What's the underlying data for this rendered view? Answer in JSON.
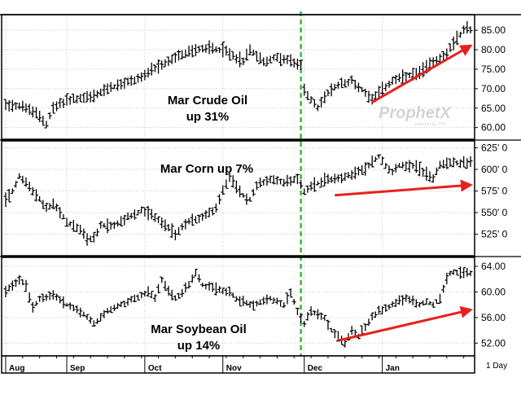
{
  "chart_data": [
    {
      "type": "ohlc",
      "series": [
        {
          "name": "Mar Crude Oil"
        }
      ],
      "annotation": [
        "Mar Crude Oil",
        "up 31%"
      ],
      "ylim": [
        57,
        89
      ],
      "yticks": [
        "85.00",
        "80.00",
        "75.00",
        "70.00",
        "65.00",
        "60.00"
      ],
      "ytick_values": [
        85,
        80,
        75,
        70,
        65,
        60
      ],
      "watermark": "ProphetX",
      "watermark_sub": "powered by DTN",
      "anchors": [
        [
          0,
          66
        ],
        [
          5,
          65.5
        ],
        [
          10,
          63
        ],
        [
          12,
          61
        ],
        [
          14,
          65
        ],
        [
          18,
          67
        ],
        [
          22,
          67.5
        ],
        [
          26,
          68
        ],
        [
          30,
          70
        ],
        [
          34,
          71
        ],
        [
          40,
          73
        ],
        [
          46,
          76
        ],
        [
          50,
          78
        ],
        [
          56,
          80
        ],
        [
          60,
          80.5
        ],
        [
          64,
          80
        ],
        [
          70,
          77
        ],
        [
          72,
          80
        ],
        [
          76,
          77
        ],
        [
          80,
          78
        ],
        [
          84,
          77
        ],
        [
          87,
          76
        ],
        [
          88,
          70
        ],
        [
          90,
          67
        ],
        [
          92,
          65
        ],
        [
          94,
          68
        ],
        [
          98,
          71
        ],
        [
          102,
          72
        ],
        [
          106,
          69
        ],
        [
          108,
          67.5
        ],
        [
          110,
          69
        ],
        [
          114,
          72
        ],
        [
          118,
          73
        ],
        [
          122,
          74
        ],
        [
          126,
          77
        ],
        [
          130,
          79
        ],
        [
          134,
          84
        ],
        [
          136,
          86
        ],
        [
          137,
          85
        ]
      ],
      "arrow": {
        "from": [
          108,
          66.5
        ],
        "to": [
          137,
          81
        ]
      }
    },
    {
      "type": "ohlc",
      "series": [
        {
          "name": "Mar Corn"
        }
      ],
      "annotation": [
        "Mar Corn up 7%"
      ],
      "ylim": [
        500,
        633
      ],
      "yticks": [
        "625' 0",
        "600' 0",
        "575' 0",
        "550' 0",
        "525' 0"
      ],
      "ytick_values": [
        625,
        600,
        575,
        550,
        525
      ],
      "anchors": [
        [
          0,
          565
        ],
        [
          2,
          575
        ],
        [
          4,
          592
        ],
        [
          6,
          585
        ],
        [
          9,
          570
        ],
        [
          12,
          555
        ],
        [
          14,
          560
        ],
        [
          18,
          540
        ],
        [
          22,
          530
        ],
        [
          24,
          520
        ],
        [
          26,
          520
        ],
        [
          28,
          535
        ],
        [
          32,
          535
        ],
        [
          36,
          545
        ],
        [
          40,
          552
        ],
        [
          44,
          545
        ],
        [
          50,
          525
        ],
        [
          54,
          540
        ],
        [
          58,
          545
        ],
        [
          62,
          555
        ],
        [
          64,
          575
        ],
        [
          66,
          590
        ],
        [
          68,
          580
        ],
        [
          70,
          570
        ],
        [
          72,
          565
        ],
        [
          74,
          582
        ],
        [
          78,
          588
        ],
        [
          82,
          585
        ],
        [
          86,
          590
        ],
        [
          88,
          575
        ],
        [
          90,
          580
        ],
        [
          94,
          588
        ],
        [
          98,
          590
        ],
        [
          102,
          595
        ],
        [
          106,
          600
        ],
        [
          108,
          610
        ],
        [
          110,
          615
        ],
        [
          112,
          605
        ],
        [
          114,
          598
        ],
        [
          116,
          605
        ],
        [
          120,
          605
        ],
        [
          124,
          595
        ],
        [
          126,
          590
        ],
        [
          128,
          605
        ],
        [
          130,
          608
        ]
      ],
      "arrow": {
        "from": [
          97,
          570
        ],
        "to": [
          137,
          582
        ]
      }
    },
    {
      "type": "ohlc",
      "series": [
        {
          "name": "Mar Soybean Oil"
        }
      ],
      "annotation": [
        "Mar Soybean Oil",
        "up 14%"
      ],
      "ylim": [
        50,
        65.4
      ],
      "yticks": [
        "64.00",
        "60.00",
        "56.00",
        "52.00"
      ],
      "ytick_values": [
        64,
        60,
        56,
        52
      ],
      "anchors": [
        [
          0,
          60
        ],
        [
          4,
          62
        ],
        [
          6,
          61
        ],
        [
          8,
          57.5
        ],
        [
          10,
          59
        ],
        [
          14,
          59.5
        ],
        [
          18,
          58
        ],
        [
          22,
          57
        ],
        [
          26,
          55
        ],
        [
          28,
          56
        ],
        [
          30,
          57
        ],
        [
          34,
          58
        ],
        [
          38,
          59
        ],
        [
          42,
          60
        ],
        [
          44,
          59
        ],
        [
          46,
          62
        ],
        [
          48,
          60
        ],
        [
          50,
          59
        ],
        [
          54,
          61
        ],
        [
          56,
          63
        ],
        [
          58,
          61
        ],
        [
          62,
          60.5
        ],
        [
          66,
          60
        ],
        [
          68,
          59
        ],
        [
          72,
          58
        ],
        [
          76,
          58.5
        ],
        [
          78,
          59
        ],
        [
          82,
          58
        ],
        [
          84,
          60
        ],
        [
          86,
          57
        ],
        [
          88,
          55
        ],
        [
          90,
          57
        ],
        [
          94,
          56
        ],
        [
          96,
          54
        ],
        [
          98,
          53
        ],
        [
          100,
          52
        ],
        [
          102,
          54
        ],
        [
          104,
          53
        ],
        [
          108,
          56
        ],
        [
          110,
          57
        ],
        [
          114,
          58
        ],
        [
          118,
          59
        ],
        [
          122,
          58
        ],
        [
          124,
          58.5
        ],
        [
          126,
          58
        ],
        [
          128,
          59
        ],
        [
          130,
          62
        ],
        [
          131,
          63
        ]
      ],
      "arrow": {
        "from": [
          98,
          52.4
        ],
        "to": [
          137,
          57.2
        ]
      }
    }
  ],
  "x_axis": {
    "labels": [
      "Aug",
      "Sep",
      "Oct",
      "Nov",
      "Dec",
      "Jan"
    ],
    "label_bar_index": [
      0,
      18,
      41,
      64,
      88,
      111
    ],
    "n_bars": 138
  },
  "marker_bar_index": 87,
  "interval_label": "1 Day",
  "colors": {
    "bars": "#000000",
    "arrow": "#e8201c",
    "marker": "#1db41d",
    "grid": "#c8c8c8",
    "watermark": "#d4d4d4"
  }
}
